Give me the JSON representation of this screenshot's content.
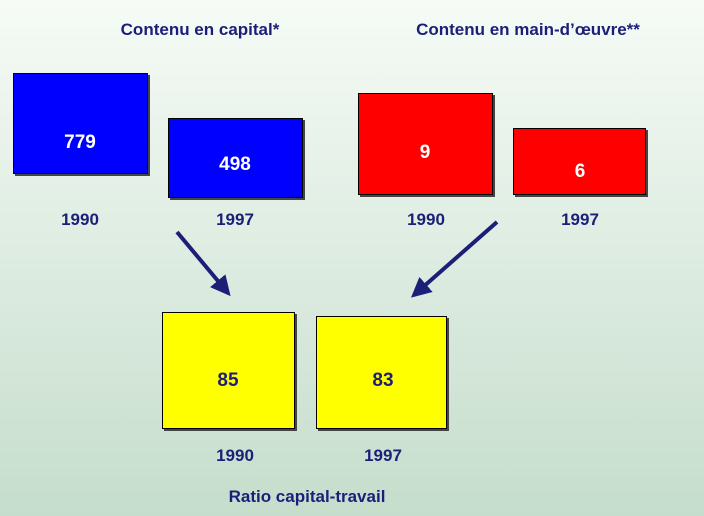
{
  "groups": [
    {
      "title": "Contenu en capital*",
      "boxes": [
        {
          "value": "779",
          "year": "1990"
        },
        {
          "value": "498",
          "year": "1997"
        }
      ]
    },
    {
      "title": "Contenu en main-d’œuvre**",
      "boxes": [
        {
          "value": "9",
          "year": "1990"
        },
        {
          "value": "6",
          "year": "1997"
        }
      ]
    },
    {
      "title": "Ratio capital-travail",
      "boxes": [
        {
          "value": "85",
          "year": "1990"
        },
        {
          "value": "83",
          "year": "1997"
        }
      ]
    }
  ]
}
